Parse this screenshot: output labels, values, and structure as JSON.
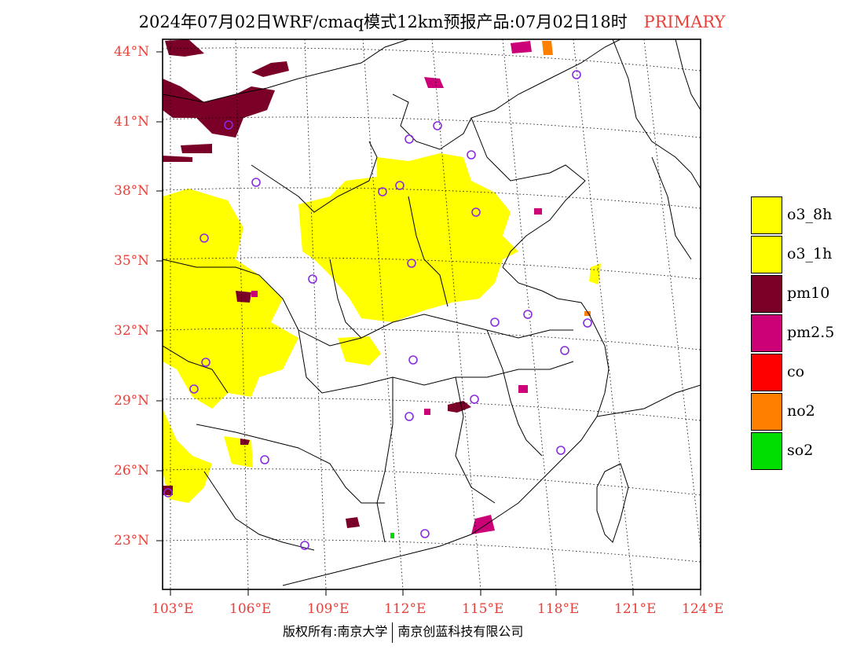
{
  "title": {
    "main": "2024年07月02日WRF/cmaq模式12km预报产品:07月02日18时",
    "tag": "PRIMARY"
  },
  "latitudes": [
    "44°N",
    "41°N",
    "38°N",
    "35°N",
    "32°N",
    "29°N",
    "26°N",
    "23°N"
  ],
  "longitudes": [
    "103°E",
    "106°E",
    "109°E",
    "112°E",
    "115°E",
    "118°E",
    "121°E",
    "124°E"
  ],
  "legend": {
    "items": [
      {
        "label": "o3_8h",
        "color": "#ffff00"
      },
      {
        "label": "o3_1h",
        "color": "#ffff00"
      },
      {
        "label": "pm10",
        "color": "#7a0028"
      },
      {
        "label": "pm2.5",
        "color": "#cc0077"
      },
      {
        "label": "co",
        "color": "#ff0000"
      },
      {
        "label": "no2",
        "color": "#ff8000"
      },
      {
        "label": "so2",
        "color": "#00dd00"
      }
    ]
  },
  "colors": {
    "axis_label": "#e8403a",
    "station_marker": "#8a2be2",
    "boundary": "#000000"
  },
  "footer": {
    "left": "版权所有:南京大学",
    "right": "南京创蓝科技有限公司"
  }
}
